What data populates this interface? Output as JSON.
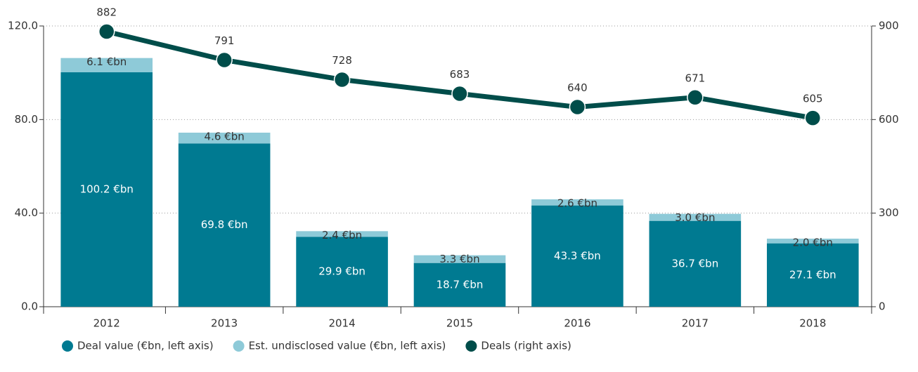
{
  "chart_data": {
    "type": "bar",
    "categories": [
      "2012",
      "2013",
      "2014",
      "2015",
      "2016",
      "2017",
      "2018"
    ],
    "series": [
      {
        "name": "Deal value (€bn, left axis)",
        "color": "#007a91",
        "values": [
          100.2,
          69.8,
          29.9,
          18.7,
          43.3,
          36.7,
          27.1
        ],
        "value_labels": [
          "100.2 €bn",
          "69.8 €bn",
          "29.9 €bn",
          "18.7 €bn",
          "43.3 €bn",
          "36.7 €bn",
          "27.1 €bn"
        ]
      },
      {
        "name": "Est. undisclosed value (€bn, left axis)",
        "color": "#8ecad8",
        "values": [
          6.1,
          4.6,
          2.4,
          3.3,
          2.6,
          3.0,
          2.0
        ],
        "value_labels": [
          "6.1 €bn",
          "4.6 €bn",
          "2.4 €bn",
          "3.3 €bn",
          "2.6 €bn",
          "3.0 €bn",
          "2.0 €bn"
        ]
      },
      {
        "name": "Deals (right axis)",
        "color": "#004d4a",
        "type": "line",
        "axis": "y2",
        "values": [
          882,
          791,
          728,
          683,
          640,
          671,
          605
        ]
      }
    ],
    "ylim": [
      0,
      120
    ],
    "yticks": [
      {
        "value": 0,
        "label": "0.0"
      },
      {
        "value": 40,
        "label": "40.0"
      },
      {
        "value": 80,
        "label": "80.0"
      },
      {
        "value": 120,
        "label": "120.0"
      }
    ],
    "y2lim": [
      0,
      900
    ],
    "y2ticks": [
      0,
      300,
      600,
      900
    ],
    "grid": true,
    "legend": "bottom"
  }
}
